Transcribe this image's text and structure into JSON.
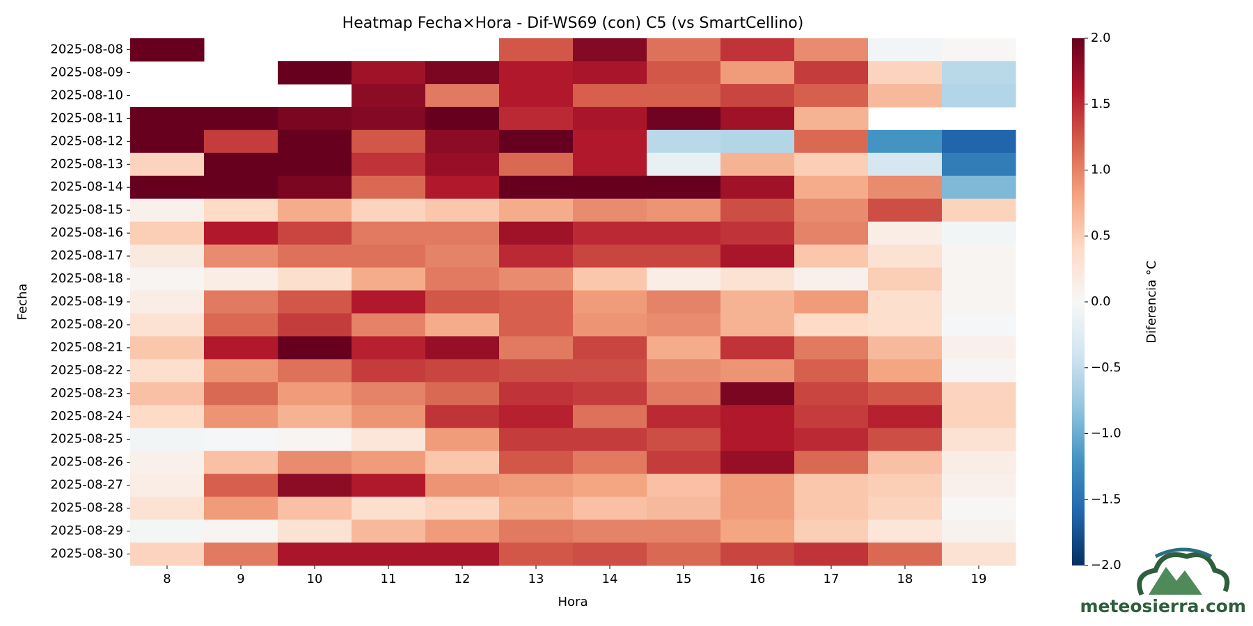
{
  "chart_data": {
    "type": "heatmap",
    "title": "Heatmap Fecha×Hora - Dif-WS69 (con) C5 (vs SmartCellino)",
    "x_label": "Hora",
    "y_label": "Fecha",
    "colorbar_label": "Diferencia °C",
    "watermark": "meteosierra.com",
    "colormap": "RdBu_r",
    "x": [
      8,
      9,
      10,
      11,
      12,
      13,
      14,
      15,
      16,
      17,
      18,
      19
    ],
    "y": [
      "2025-08-08",
      "2025-08-09",
      "2025-08-10",
      "2025-08-11",
      "2025-08-12",
      "2025-08-13",
      "2025-08-14",
      "2025-08-15",
      "2025-08-16",
      "2025-08-17",
      "2025-08-18",
      "2025-08-19",
      "2025-08-20",
      "2025-08-21",
      "2025-08-22",
      "2025-08-23",
      "2025-08-24",
      "2025-08-25",
      "2025-08-26",
      "2025-08-27",
      "2025-08-28",
      "2025-08-29",
      "2025-08-30"
    ],
    "values": [
      [
        2.0,
        null,
        null,
        null,
        null,
        1.25,
        1.85,
        1.1,
        1.45,
        0.95,
        -0.05,
        0.02
      ],
      [
        null,
        null,
        2.0,
        1.7,
        1.9,
        1.6,
        1.65,
        1.25,
        0.85,
        1.4,
        0.45,
        -0.55
      ],
      [
        null,
        null,
        null,
        1.8,
        1.05,
        1.6,
        1.2,
        1.2,
        1.35,
        1.2,
        0.65,
        -0.6
      ],
      [
        2.0,
        2.0,
        1.9,
        1.85,
        2.0,
        1.5,
        1.65,
        1.95,
        1.7,
        0.7,
        null,
        null
      ],
      [
        2.0,
        1.4,
        2.0,
        1.25,
        1.8,
        2.0,
        1.6,
        -0.55,
        -0.6,
        1.15,
        -1.2,
        -1.6
      ],
      [
        0.45,
        2.0,
        2.0,
        1.45,
        1.75,
        1.15,
        1.6,
        -0.15,
        0.7,
        0.5,
        -0.35,
        -1.4
      ],
      [
        2.0,
        2.0,
        1.9,
        1.15,
        1.6,
        2.0,
        2.0,
        2.0,
        1.7,
        0.75,
        0.95,
        -0.9
      ],
      [
        0.1,
        0.4,
        0.75,
        0.45,
        0.55,
        0.75,
        0.95,
        0.9,
        1.3,
        0.95,
        1.3,
        0.45
      ],
      [
        0.5,
        1.6,
        1.35,
        1.05,
        1.05,
        1.7,
        1.5,
        1.5,
        1.45,
        1.0,
        0.15,
        -0.05
      ],
      [
        0.2,
        0.95,
        1.1,
        1.1,
        1.0,
        1.5,
        1.35,
        1.35,
        1.65,
        0.55,
        0.3,
        0.05
      ],
      [
        0.05,
        0.15,
        0.35,
        0.75,
        1.05,
        0.95,
        0.55,
        0.15,
        0.3,
        0.1,
        0.5,
        0.05
      ],
      [
        0.15,
        1.05,
        1.25,
        1.6,
        1.25,
        1.2,
        0.85,
        1.0,
        0.7,
        0.85,
        0.35,
        0.05
      ],
      [
        0.3,
        1.15,
        1.4,
        1.0,
        0.75,
        1.2,
        0.9,
        0.95,
        0.7,
        0.4,
        0.35,
        -0.02
      ],
      [
        0.55,
        1.6,
        2.0,
        1.55,
        1.75,
        1.05,
        1.35,
        0.75,
        1.45,
        1.05,
        0.65,
        0.1
      ],
      [
        0.35,
        0.9,
        1.1,
        1.4,
        1.35,
        1.3,
        1.3,
        0.95,
        0.9,
        1.2,
        0.8,
        0.03
      ],
      [
        0.6,
        1.15,
        0.85,
        1.0,
        1.15,
        1.45,
        1.4,
        1.05,
        1.9,
        1.35,
        1.25,
        0.45
      ],
      [
        0.4,
        0.9,
        0.7,
        0.9,
        1.45,
        1.55,
        1.1,
        1.5,
        1.6,
        1.4,
        1.55,
        0.45
      ],
      [
        -0.05,
        -0.02,
        0.05,
        0.25,
        0.85,
        1.4,
        1.4,
        1.3,
        1.6,
        1.5,
        1.3,
        0.3
      ],
      [
        0.1,
        0.6,
        0.95,
        0.85,
        0.55,
        1.25,
        1.05,
        1.4,
        1.75,
        1.15,
        0.6,
        0.15
      ],
      [
        0.15,
        1.2,
        1.8,
        1.6,
        0.9,
        0.85,
        0.8,
        0.6,
        0.85,
        0.55,
        0.5,
        0.1
      ],
      [
        0.3,
        0.85,
        0.6,
        0.35,
        0.45,
        0.75,
        0.6,
        0.65,
        0.85,
        0.55,
        0.45,
        0.02
      ],
      [
        -0.03,
        0.05,
        0.3,
        0.65,
        0.85,
        1.05,
        1.0,
        1.0,
        0.8,
        0.5,
        0.25,
        0.07
      ],
      [
        0.45,
        1.05,
        1.65,
        1.65,
        1.65,
        1.25,
        1.3,
        1.15,
        1.35,
        1.45,
        1.15,
        0.3
      ]
    ],
    "clim": [
      -2,
      2
    ],
    "cticks": [
      {
        "value": -2,
        "label": "−2.0"
      },
      {
        "value": -1.5,
        "label": "−1.5"
      },
      {
        "value": -1,
        "label": "−1.0"
      },
      {
        "value": -0.5,
        "label": "−0.5"
      },
      {
        "value": 0,
        "label": "0.0"
      },
      {
        "value": 0.5,
        "label": "0.5"
      },
      {
        "value": 1,
        "label": "1.0"
      },
      {
        "value": 1.5,
        "label": "1.5"
      },
      {
        "value": 2,
        "label": "2.0"
      }
    ]
  }
}
